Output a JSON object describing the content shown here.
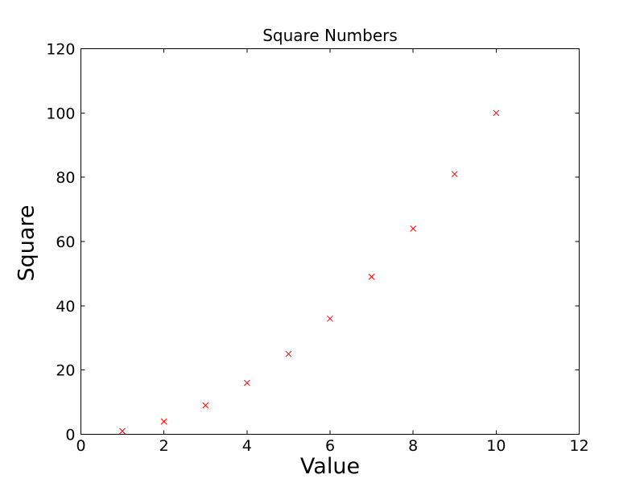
{
  "figure": {
    "background": "#ffffff",
    "frame_color": "#000000",
    "tick_color": "#000000"
  },
  "chart_data": {
    "type": "scatter",
    "title": "Square Numbers",
    "xlabel": "Value",
    "ylabel": "Square",
    "x": [
      1,
      2,
      3,
      4,
      5,
      6,
      7,
      8,
      9,
      10
    ],
    "y": [
      1,
      4,
      9,
      16,
      25,
      36,
      49,
      64,
      81,
      100
    ],
    "marker": "x",
    "marker_color": "#ff0000",
    "xlim": [
      0,
      12
    ],
    "ylim": [
      0,
      120
    ],
    "xticks": [
      0,
      2,
      4,
      6,
      8,
      10,
      12
    ],
    "yticks": [
      0,
      20,
      40,
      60,
      80,
      100,
      120
    ],
    "grid": false,
    "legend": false,
    "tick_direction": "in",
    "ticks_all_sides": true
  }
}
